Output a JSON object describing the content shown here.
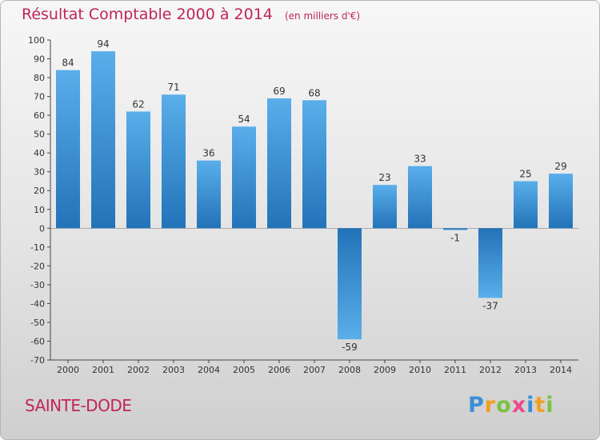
{
  "header": {
    "title": "Résultat Comptable 2000 à 2014",
    "unit": "(en milliers d'€)"
  },
  "commune": "SAINTE-DODE",
  "logo": {
    "text": "Proxiti",
    "letters": [
      {
        "ch": "P",
        "color": "#3a8fd6"
      },
      {
        "ch": "r",
        "color": "#f2a020"
      },
      {
        "ch": "o",
        "color": "#7cc242"
      },
      {
        "ch": "x",
        "color": "#e84a8a"
      },
      {
        "ch": "i",
        "color": "#3a8fd6"
      },
      {
        "ch": "t",
        "color": "#f2a020"
      },
      {
        "ch": "i",
        "color": "#7cc242"
      }
    ]
  },
  "colors": {
    "title": "#c0245a",
    "bar_light": "#5aaeea",
    "bar_dark": "#2273b8"
  },
  "chart_data": {
    "type": "bar",
    "title": "Résultat Comptable 2000 à 2014",
    "subtitle": "(en milliers d'€)",
    "categories": [
      "2000",
      "2001",
      "2002",
      "2003",
      "2004",
      "2005",
      "2006",
      "2007",
      "2008",
      "2009",
      "2010",
      "2011",
      "2012",
      "2013",
      "2014"
    ],
    "values": [
      84,
      94,
      62,
      71,
      36,
      54,
      69,
      68,
      -59,
      23,
      33,
      -1,
      -37,
      25,
      29
    ],
    "data_labels": [
      "84",
      "94",
      "62",
      "71",
      "36",
      "54",
      "69",
      "68",
      "-59",
      "23",
      "33",
      "-1",
      "-37",
      "25",
      "29"
    ],
    "ylim": [
      -70,
      100
    ],
    "yticks": [
      100,
      90,
      80,
      70,
      60,
      50,
      40,
      30,
      20,
      10,
      0,
      -10,
      -20,
      -30,
      -40,
      -50,
      -60,
      -70
    ],
    "grid": false,
    "legend": "none"
  }
}
